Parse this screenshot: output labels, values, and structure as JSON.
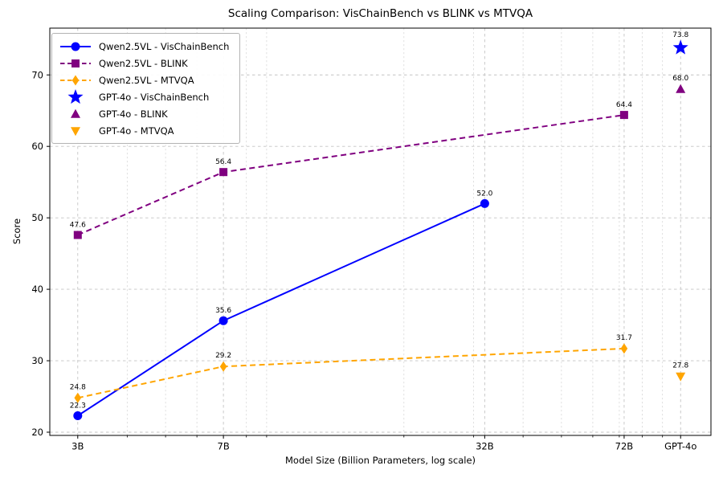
{
  "figure": {
    "background": "#ffffff"
  },
  "chart_data": {
    "type": "line",
    "title": "Scaling Comparison: VisChainBench vs BLINK vs MTVQA",
    "xlabel": "Model Size (Billion Parameters, log scale)",
    "ylabel": "Score",
    "x_scale": "log",
    "xlim": [
      2.55,
      119.3
    ],
    "ylim": [
      19.55,
      76.55
    ],
    "grid": true,
    "legend_position": "upper left",
    "x_ticks": [
      {
        "value": 3,
        "label": "3B"
      },
      {
        "value": 7,
        "label": "7B"
      },
      {
        "value": 32,
        "label": "32B"
      },
      {
        "value": 72,
        "label": "72B"
      },
      {
        "value": 100,
        "label": "GPT-4o"
      }
    ],
    "x_minor_ticks": [
      4,
      5,
      6,
      8,
      9,
      20,
      30,
      40,
      50,
      60,
      70,
      80,
      90
    ],
    "y_ticks": [
      20,
      30,
      40,
      50,
      60,
      70
    ],
    "series": [
      {
        "name": "Qwen2.5VL - VisChainBench",
        "color": "#0000ff",
        "line": "solid",
        "marker": "circle",
        "x": [
          3,
          7,
          32
        ],
        "y": [
          22.3,
          35.6,
          52.0
        ],
        "point_labels": [
          "22.3",
          "35.6",
          "52.0"
        ]
      },
      {
        "name": "Qwen2.5VL - BLINK",
        "color": "#800080",
        "line": "dashed",
        "marker": "square",
        "x": [
          3,
          7,
          72
        ],
        "y": [
          47.6,
          56.4,
          64.4
        ],
        "point_labels": [
          "47.6",
          "56.4",
          "64.4"
        ]
      },
      {
        "name": "Qwen2.5VL - MTVQA",
        "color": "#ffa500",
        "line": "dashed",
        "marker": "diamond",
        "x": [
          3,
          7,
          72
        ],
        "y": [
          24.8,
          29.2,
          31.7
        ],
        "point_labels": [
          "24.8",
          "29.2",
          "31.7"
        ]
      },
      {
        "name": "GPT-4o - VisChainBench",
        "color": "#0000ff",
        "line": "none",
        "marker": "star",
        "x": [
          100
        ],
        "y": [
          73.8
        ],
        "point_labels": [
          "73.8"
        ]
      },
      {
        "name": "GPT-4o - BLINK",
        "color": "#800080",
        "line": "none",
        "marker": "triangle-up",
        "x": [
          100
        ],
        "y": [
          68.0
        ],
        "point_labels": [
          "68.0"
        ]
      },
      {
        "name": "GPT-4o - MTVQA",
        "color": "#ffa500",
        "line": "none",
        "marker": "triangle-down",
        "x": [
          100
        ],
        "y": [
          27.8
        ],
        "point_labels": [
          "27.8"
        ]
      }
    ]
  }
}
